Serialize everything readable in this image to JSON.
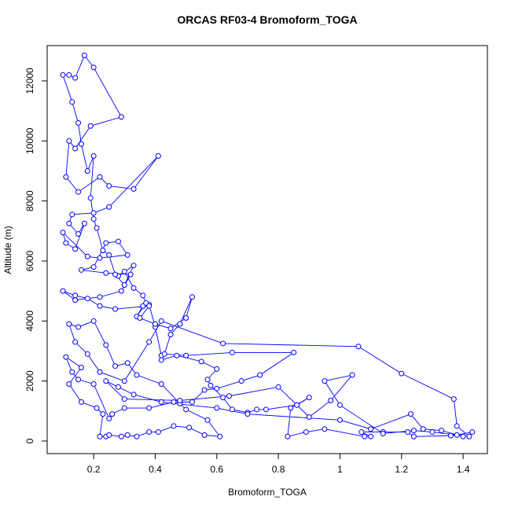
{
  "chart_data": {
    "type": "line",
    "title": "ORCAS RF03-4 Bromoform_TOGA",
    "x_label": "Bromoform_TOGA",
    "y_label": "Altitude (m)",
    "color": "#0000ff",
    "xlim": [
      0.049,
      1.479
    ],
    "ylim": [
      -419,
      13178
    ],
    "xticks": [
      0.2,
      0.4,
      0.6,
      0.8,
      1.0,
      1.2,
      1.4
    ],
    "yticks": [
      0,
      2000,
      4000,
      6000,
      8000,
      10000,
      12000
    ],
    "x": [
      1.43,
      1.38,
      1.36,
      1.24,
      1.22,
      1.14,
      1.07,
      1.1,
      1.08,
      0.95,
      0.89,
      0.83,
      0.84,
      0.9,
      0.86,
      0.76,
      0.73,
      0.7,
      0.65,
      0.62,
      0.58,
      0.57,
      0.6,
      0.55,
      0.47,
      0.42,
      0.42,
      0.4,
      0.38,
      0.36,
      0.34,
      0.37,
      0.36,
      0.33,
      0.3,
      0.28,
      0.33,
      0.3,
      0.27,
      0.25,
      0.23,
      0.21,
      0.2,
      0.19,
      0.2,
      0.18,
      0.16,
      0.15,
      0.13,
      0.1,
      0.12,
      0.14,
      0.17,
      0.2,
      0.29,
      0.19,
      0.14,
      0.12,
      0.11,
      0.15,
      0.22,
      0.25,
      0.33,
      0.41,
      0.25,
      0.2,
      0.13,
      0.12,
      0.15,
      0.17,
      0.14,
      0.11,
      0.1,
      0.18,
      0.22,
      0.31,
      0.28,
      0.24,
      0.2,
      0.16,
      0.24,
      0.32,
      0.29,
      0.22,
      0.14,
      0.1,
      0.14,
      0.18,
      0.22,
      0.27,
      0.38,
      0.35,
      0.4,
      0.45,
      0.5,
      0.52,
      0.48,
      0.45,
      0.43,
      0.5,
      0.65,
      0.85,
      0.74,
      0.68,
      0.6,
      0.56,
      0.52,
      0.46,
      0.38,
      0.3,
      0.26,
      0.25,
      0.2,
      0.15,
      0.13,
      0.11,
      0.16,
      0.12,
      0.16,
      0.21,
      0.23,
      0.22,
      0.24,
      0.25,
      0.29,
      0.31,
      0.34,
      0.38,
      0.41,
      0.46,
      0.51,
      0.56,
      0.61,
      0.57,
      0.5,
      0.48,
      0.42,
      0.34,
      0.31,
      0.27,
      0.24,
      0.2,
      0.15,
      0.12,
      0.14,
      0.18,
      0.22,
      0.3,
      0.38,
      0.42,
      0.62,
      1.06,
      1.2,
      1.37,
      1.38,
      1.42,
      1.3,
      1.24,
      1.14,
      1.0,
      0.95,
      1.04,
      0.97,
      0.9,
      0.86,
      0.8,
      0.64,
      0.48,
      0.3,
      0.24,
      0.28,
      0.33,
      0.42,
      0.6,
      0.7,
      1.0,
      1.1,
      1.23,
      1.27,
      1.33,
      1.4
    ],
    "values": [
      300,
      200,
      180,
      150,
      300,
      300,
      300,
      150,
      150,
      400,
      300,
      150,
      1100,
      1450,
      1200,
      1050,
      1050,
      950,
      1050,
      1450,
      1850,
      2050,
      2400,
      2650,
      2850,
      2700,
      2850,
      3800,
      4550,
      4500,
      4150,
      4600,
      4850,
      5100,
      5650,
      5500,
      5850,
      5200,
      5550,
      6200,
      6350,
      7100,
      7400,
      8100,
      9500,
      9000,
      9900,
      10600,
      11300,
      12200,
      12200,
      12100,
      12850,
      12450,
      10800,
      10500,
      9750,
      10000,
      8800,
      8300,
      8800,
      8500,
      8400,
      9500,
      7800,
      7600,
      7550,
      7250,
      6900,
      7250,
      6400,
      6600,
      6950,
      6150,
      6100,
      6200,
      6650,
      6600,
      5800,
      5700,
      5600,
      5550,
      5000,
      4800,
      4700,
      5000,
      4850,
      4750,
      4500,
      4400,
      4500,
      4100,
      3900,
      3750,
      4100,
      4800,
      3900,
      3550,
      2900,
      2850,
      2950,
      2950,
      2200,
      2000,
      1750,
      1700,
      1300,
      1300,
      1100,
      1100,
      900,
      750,
      1900,
      2050,
      2300,
      2800,
      2450,
      1900,
      1300,
      1100,
      900,
      150,
      150,
      200,
      150,
      200,
      150,
      300,
      300,
      500,
      450,
      200,
      150,
      700,
      1050,
      1250,
      1900,
      2200,
      2600,
      2500,
      3200,
      4000,
      3800,
      3900,
      3300,
      2900,
      2300,
      2000,
      3300,
      4000,
      3250,
      3150,
      2250,
      1400,
      500,
      150,
      300,
      350,
      250,
      1200,
      2000,
      2200,
      1350,
      800,
      1200,
      1800,
      1500,
      1350,
      1400,
      2000,
      1800,
      1550,
      1300,
      1100,
      900,
      700,
      400,
      900,
      400,
      350,
      150
    ]
  }
}
